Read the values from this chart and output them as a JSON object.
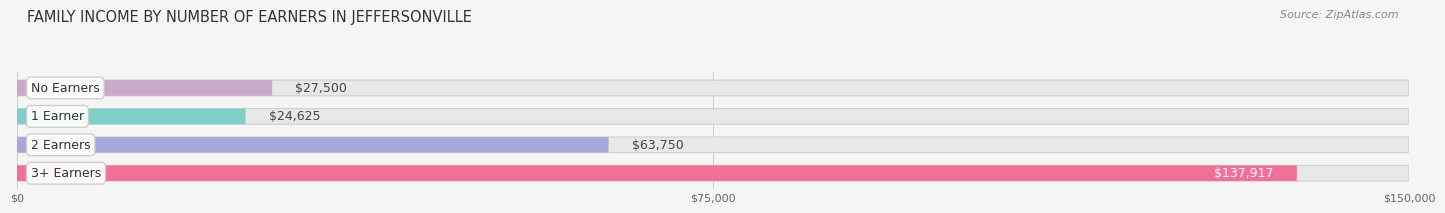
{
  "title": "FAMILY INCOME BY NUMBER OF EARNERS IN JEFFERSONVILLE",
  "source": "Source: ZipAtlas.com",
  "categories": [
    "No Earners",
    "1 Earner",
    "2 Earners",
    "3+ Earners"
  ],
  "values": [
    27500,
    24625,
    63750,
    137917
  ],
  "bar_colors": [
    "#c9a8c8",
    "#7ececa",
    "#a8a8d8",
    "#f07098"
  ],
  "bar_bg_color": "#e8e8e8",
  "xlim": [
    0,
    150000
  ],
  "xticks": [
    0,
    75000,
    150000
  ],
  "xtick_labels": [
    "$0",
    "$75,000",
    "$150,000"
  ],
  "label_fontsize": 9,
  "value_fontsize": 9,
  "title_fontsize": 10.5,
  "source_fontsize": 8,
  "background_color": "#f5f5f5",
  "bar_height": 0.55,
  "n_bars": 4
}
